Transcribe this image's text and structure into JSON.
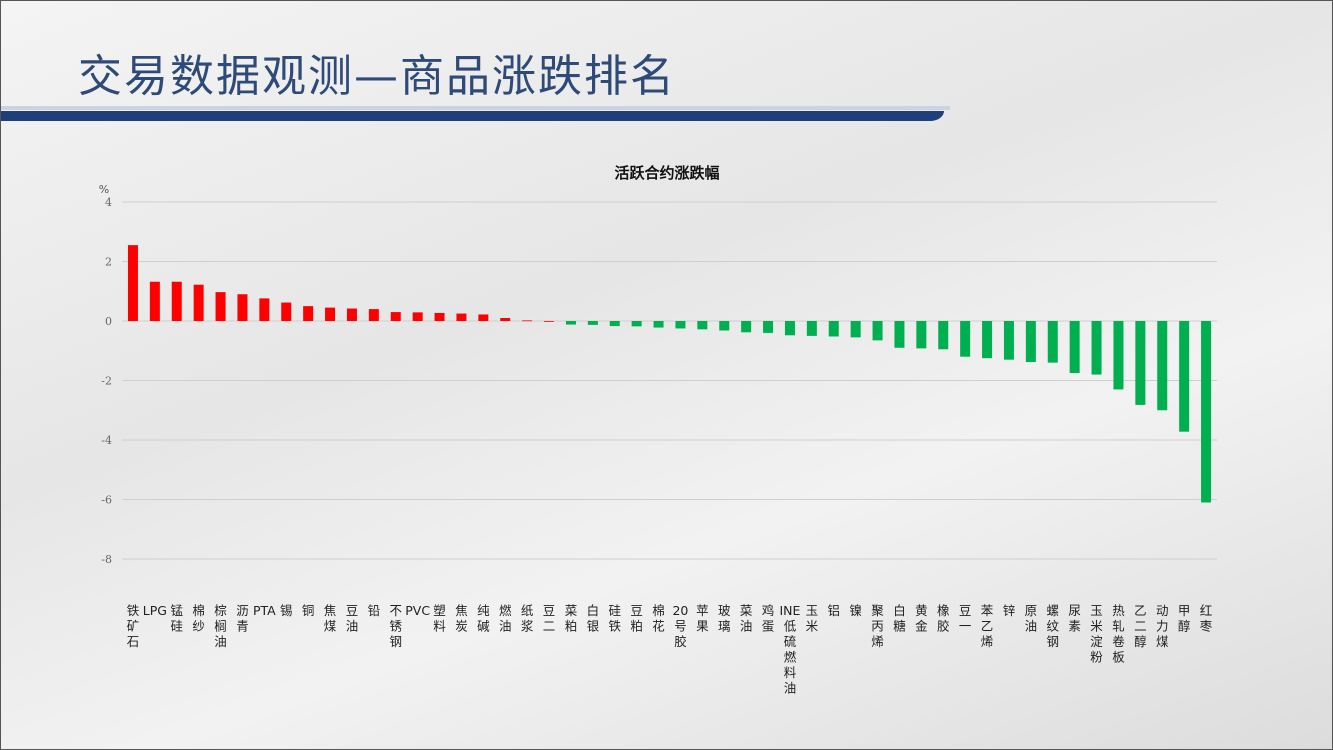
{
  "page": {
    "title": "交易数据观测—商品涨跌排名"
  },
  "colors": {
    "positive": "#ff0000",
    "negative": "#00b050",
    "title": "#2e4a78",
    "title_bar": "#1e3f7a"
  },
  "chart_data": {
    "type": "bar",
    "title": "活跃合约涨跌幅",
    "ylabel": "%",
    "xlabel": "",
    "ylim": [
      -8,
      4
    ],
    "yticks": [
      4,
      2,
      0,
      -2,
      -4,
      -6,
      -8
    ],
    "grid": true,
    "categories": [
      "铁矿石",
      "LPG",
      "锰硅",
      "棉纱",
      "棕榈油",
      "沥青",
      "PTA",
      "锡",
      "铜",
      "焦煤",
      "豆油",
      "铅",
      "不锈钢",
      "PVC",
      "塑料",
      "焦炭",
      "纯碱",
      "燃油",
      "纸浆",
      "豆二",
      "菜粕",
      "白银",
      "硅铁",
      "豆粕",
      "棉花",
      "20号胶",
      "苹果",
      "玻璃",
      "菜油",
      "鸡蛋",
      "INE低硫燃料油",
      "玉米",
      "铝",
      "镍",
      "聚丙烯",
      "白糖",
      "黄金",
      "橡胶",
      "豆一",
      "苯乙烯",
      "锌",
      "原油",
      "螺纹钢",
      "尿素",
      "玉米淀粉",
      "热轧卷板",
      "乙二醇",
      "动力煤",
      "甲醇",
      "红枣"
    ],
    "values": [
      2.55,
      1.32,
      1.32,
      1.22,
      0.97,
      0.9,
      0.76,
      0.62,
      0.5,
      0.45,
      0.42,
      0.4,
      0.3,
      0.29,
      0.27,
      0.25,
      0.22,
      0.1,
      0.02,
      0.0,
      -0.12,
      -0.13,
      -0.17,
      -0.18,
      -0.22,
      -0.25,
      -0.28,
      -0.32,
      -0.38,
      -0.4,
      -0.48,
      -0.5,
      -0.52,
      -0.55,
      -0.65,
      -0.9,
      -0.92,
      -0.95,
      -1.2,
      -1.25,
      -1.3,
      -1.38,
      -1.4,
      -1.75,
      -1.8,
      -2.3,
      -2.82,
      -3.0,
      -3.72,
      -6.1
    ]
  }
}
